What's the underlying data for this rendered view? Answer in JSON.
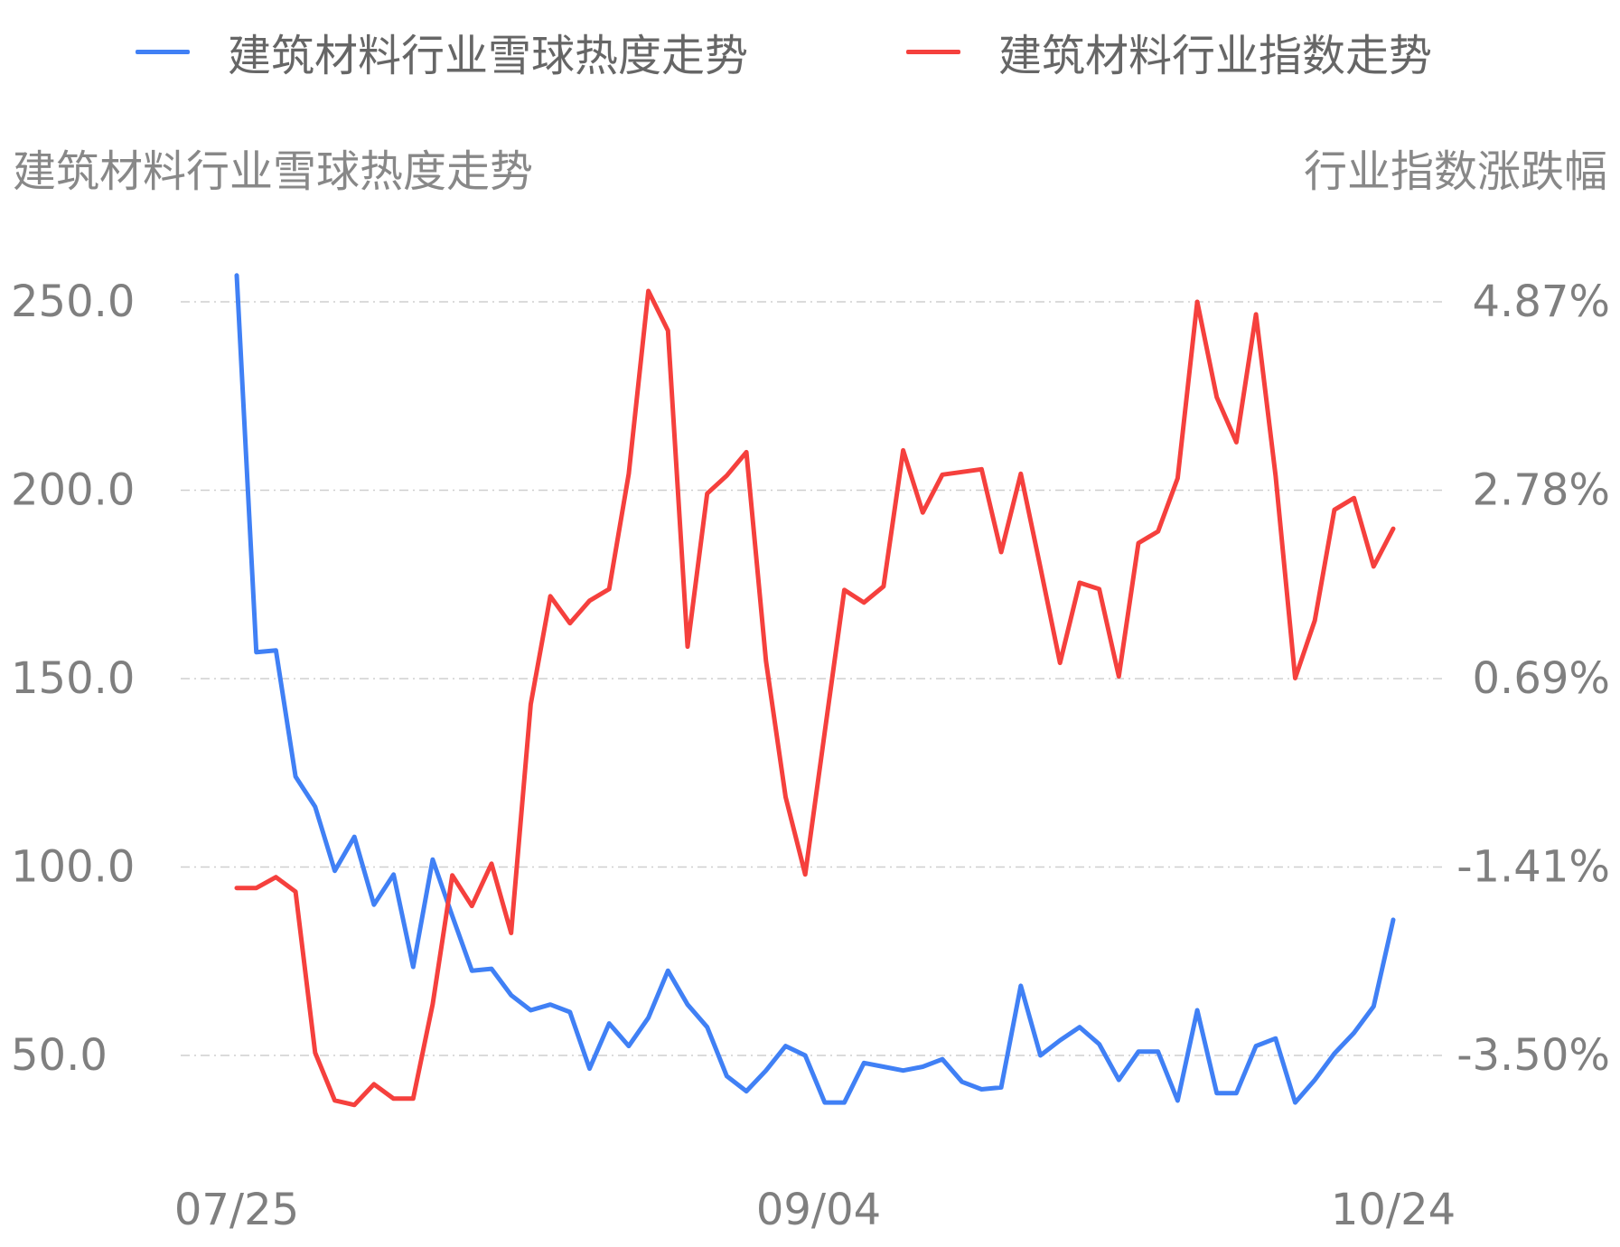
{
  "legend": {
    "heat_label": "建筑材料行业雪球热度走势",
    "index_label": "建筑材料行业指数走势",
    "heat_color": "#4080f5",
    "index_color": "#f5403d"
  },
  "axis_titles": {
    "left": "建筑材料行业雪球热度走势",
    "right": "行业指数涨跌幅"
  },
  "chart_data": {
    "type": "line",
    "x_tick_labels": [
      "07/25",
      "09/04",
      "10/24"
    ],
    "left_axis": {
      "ticks": [
        "250.0",
        "200.0",
        "150.0",
        "100.0",
        "50.0"
      ],
      "values": [
        250,
        200,
        150,
        100,
        50
      ]
    },
    "right_axis": {
      "ticks": [
        "4.87%",
        "2.78%",
        "0.69%",
        "-1.41%",
        "-3.50%"
      ],
      "values": [
        4.87,
        2.78,
        0.69,
        -1.41,
        -3.5
      ]
    },
    "grid": true,
    "legend_position": "top",
    "series": [
      {
        "name": "建筑材料行业雪球热度走势",
        "axis": "left",
        "color": "#4080f5",
        "values": [
          257,
          157,
          157.5,
          124,
          116,
          99,
          108,
          90,
          98,
          73.5,
          102,
          87,
          72.5,
          73,
          66,
          62,
          63.5,
          61.5,
          46.5,
          58.5,
          52.5,
          60,
          72.5,
          63.5,
          57.5,
          44.5,
          40.5,
          46,
          52.5,
          50,
          37.5,
          37.5,
          48,
          47,
          46,
          47,
          49,
          43,
          41,
          41.5,
          68.5,
          50,
          54,
          57.5,
          53,
          43.5,
          51,
          51,
          38,
          62,
          40,
          40,
          52.5,
          54.5,
          37.5,
          43.5,
          50.5,
          56,
          63,
          86
        ]
      },
      {
        "name": "建筑材料行业指数走势",
        "axis": "right",
        "color": "#f5403d",
        "values": [
          -1.64,
          -1.64,
          -1.52,
          -1.68,
          -3.47,
          -4.0,
          -4.05,
          -3.82,
          -3.98,
          -3.98,
          -2.93,
          -1.5,
          -1.84,
          -1.37,
          -2.14,
          0.4,
          1.6,
          1.3,
          1.55,
          1.68,
          2.96,
          4.99,
          4.55,
          1.04,
          2.74,
          2.94,
          3.2,
          0.88,
          -0.63,
          -1.49,
          0.09,
          1.67,
          1.53,
          1.71,
          3.22,
          2.53,
          2.95,
          2.98,
          3.01,
          2.09,
          2.96,
          1.92,
          0.86,
          1.75,
          1.68,
          0.71,
          2.19,
          2.32,
          2.91,
          4.87,
          3.81,
          3.31,
          4.73,
          2.94,
          0.69,
          1.33,
          2.56,
          2.69,
          1.93,
          2.35
        ]
      }
    ]
  }
}
